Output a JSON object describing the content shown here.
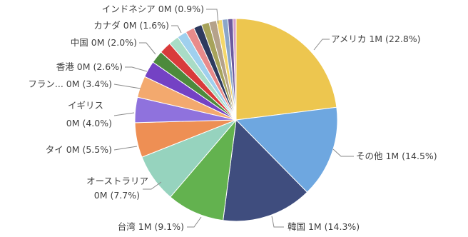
{
  "chart_data": {
    "type": "pie",
    "title": "",
    "total_label_note": "",
    "slices": [
      {
        "label": "アメリカ",
        "value_text": "1M",
        "percent": 22.8,
        "percent_text": "(22.8%)",
        "color": "#EDC64F"
      },
      {
        "label": "その他",
        "value_text": "1M",
        "percent": 14.5,
        "percent_text": "(14.5%)",
        "color": "#6EA7E0"
      },
      {
        "label": "韓国",
        "value_text": "1M",
        "percent": 14.3,
        "percent_text": "(14.3%)",
        "color": "#3F4D7E"
      },
      {
        "label": "台湾",
        "value_text": "1M",
        "percent": 9.1,
        "percent_text": "(9.1%)",
        "color": "#63B24F"
      },
      {
        "label": "オーストラリア",
        "value_text": "0M",
        "percent": 7.7,
        "percent_text": "(7.7%)",
        "color": "#96D3BE"
      },
      {
        "label": "タイ",
        "value_text": "0M",
        "percent": 5.5,
        "percent_text": "(5.5%)",
        "color": "#EE8F54"
      },
      {
        "label": "イギリス",
        "value_text": "0M",
        "percent": 4.0,
        "percent_text": "(4.0%)",
        "color": "#8F72DD"
      },
      {
        "label": "フラン...",
        "value_text": "0M",
        "percent": 3.4,
        "percent_text": "(3.4%)",
        "color": "#F3A96E"
      },
      {
        "label": "香港",
        "value_text": "0M",
        "percent": 2.6,
        "percent_text": "(2.6%)",
        "color": "#7442C4"
      },
      {
        "label": "中国",
        "value_text": "0M",
        "percent": 2.0,
        "percent_text": "(2.0%)",
        "color": "#4D8A3C"
      },
      {
        "label": "",
        "value_text": "",
        "percent": 1.9,
        "percent_text": "",
        "color": "#D93B3B"
      },
      {
        "label": "カナダ",
        "value_text": "0M",
        "percent": 1.6,
        "percent_text": "(1.6%)",
        "color": "#A9DCC6"
      },
      {
        "label": "",
        "value_text": "",
        "percent": 1.5,
        "percent_text": "",
        "color": "#9FD0EE"
      },
      {
        "label": "",
        "value_text": "",
        "percent": 1.4,
        "percent_text": "",
        "color": "#E88B8B"
      },
      {
        "label": "",
        "value_text": "",
        "percent": 1.3,
        "percent_text": "",
        "color": "#2E3A5E"
      },
      {
        "label": "",
        "value_text": "",
        "percent": 1.2,
        "percent_text": "",
        "color": "#A7A35A"
      },
      {
        "label": "",
        "value_text": "",
        "percent": 1.2,
        "percent_text": "",
        "color": "#B5A28A"
      },
      {
        "label": "インドネシア",
        "value_text": "0M",
        "percent": 0.9,
        "percent_text": "(0.9%)",
        "color": "#F4D76A"
      },
      {
        "label": "",
        "value_text": "",
        "percent": 0.9,
        "percent_text": "",
        "color": "#8BA6C9"
      },
      {
        "label": "",
        "value_text": "",
        "percent": 0.8,
        "percent_text": "",
        "color": "#6C5A9E"
      },
      {
        "label": "",
        "value_text": "",
        "percent": 0.5,
        "percent_text": "",
        "color": "#D6A0C8"
      }
    ]
  }
}
